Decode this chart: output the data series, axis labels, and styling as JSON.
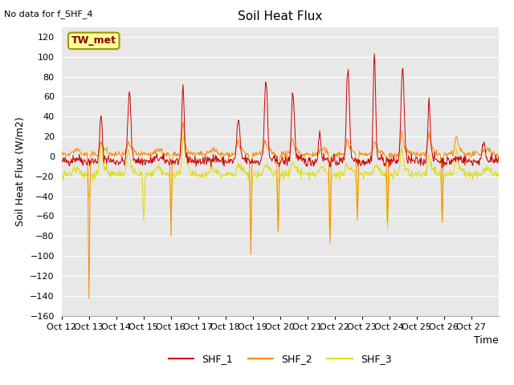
{
  "title": "Soil Heat Flux",
  "no_data_label": "No data for f_SHF_4",
  "tw_met_label": "TW_met",
  "ylabel": "Soil Heat Flux (W/m2)",
  "xlabel": "Time",
  "ylim": [
    -160,
    130
  ],
  "yticks": [
    -160,
    -140,
    -120,
    -100,
    -80,
    -60,
    -40,
    -20,
    0,
    20,
    40,
    60,
    80,
    100,
    120
  ],
  "xtick_labels": [
    "Oct 12",
    "Oct 13",
    "Oct 14",
    "Oct 15",
    "Oct 16",
    "Oct 17",
    "Oct 18",
    "Oct 19",
    "Oct 20",
    "Oct 21",
    "Oct 22",
    "Oct 23",
    "Oct 24",
    "Oct 25",
    "Oct 26",
    "Oct 27"
  ],
  "color_shf1": "#cc0000",
  "color_shf2": "#ff8800",
  "color_shf3": "#dddd00",
  "legend_entries": [
    "SHF_1",
    "SHF_2",
    "SHF_3"
  ],
  "bg_color": "#e8e8e8",
  "fig_bg": "#ffffff",
  "grid_color": "#ffffff",
  "line_width": 0.7,
  "seed": 42
}
